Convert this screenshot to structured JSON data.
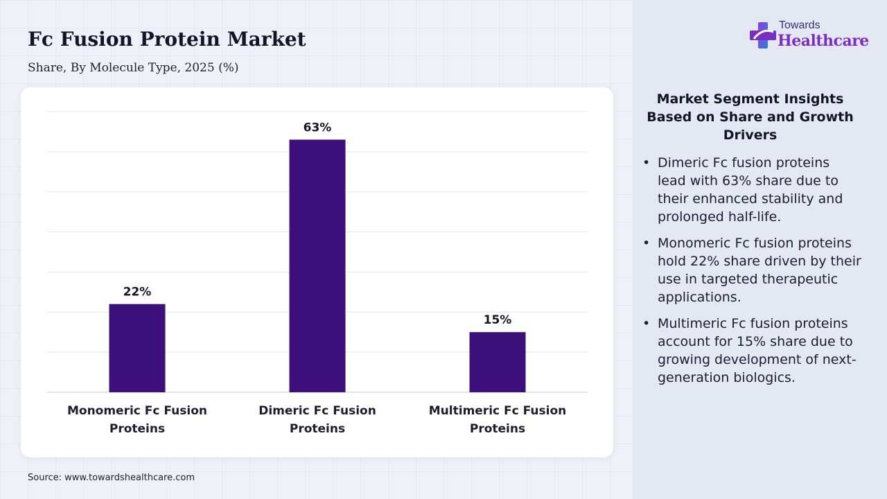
{
  "header": {
    "title": "Fc Fusion Protein Market",
    "subtitle": "Share, By Molecule Type, 2025 (%)"
  },
  "chart_data": {
    "type": "bar",
    "categories": [
      "Monomeric Fc Fusion Proteins",
      "Dimeric Fc Fusion Proteins",
      "Multimeric Fc Fusion Proteins"
    ],
    "category_lines": [
      [
        "Monomeric Fc Fusion",
        "Proteins"
      ],
      [
        "Dimeric Fc Fusion",
        "Proteins"
      ],
      [
        "Multimeric Fc Fusion",
        "Proteins"
      ]
    ],
    "values": [
      22,
      63,
      15
    ],
    "data_labels": [
      "22%",
      "63%",
      "15%"
    ],
    "ylim": [
      0,
      70
    ],
    "grid": true,
    "legend": "none",
    "bar_color": "#3d0f7a"
  },
  "footer": {
    "source": "Source: www.towardshealthcare.com"
  },
  "logo": {
    "top": "Towards",
    "main": "Healthcare",
    "icon": "medical-cross-icon"
  },
  "insights": {
    "title": "Market Segment Insights Based on Share and Growth Drivers",
    "bullets": [
      "Dimeric Fc fusion proteins lead with 63% share due to their enhanced stability and prolonged half-life.",
      "Monomeric Fc fusion proteins hold 22% share driven by their use in targeted therapeutic applications.",
      "Multimeric Fc fusion proteins account for 15% share due to growing development of next-generation biologics."
    ]
  }
}
